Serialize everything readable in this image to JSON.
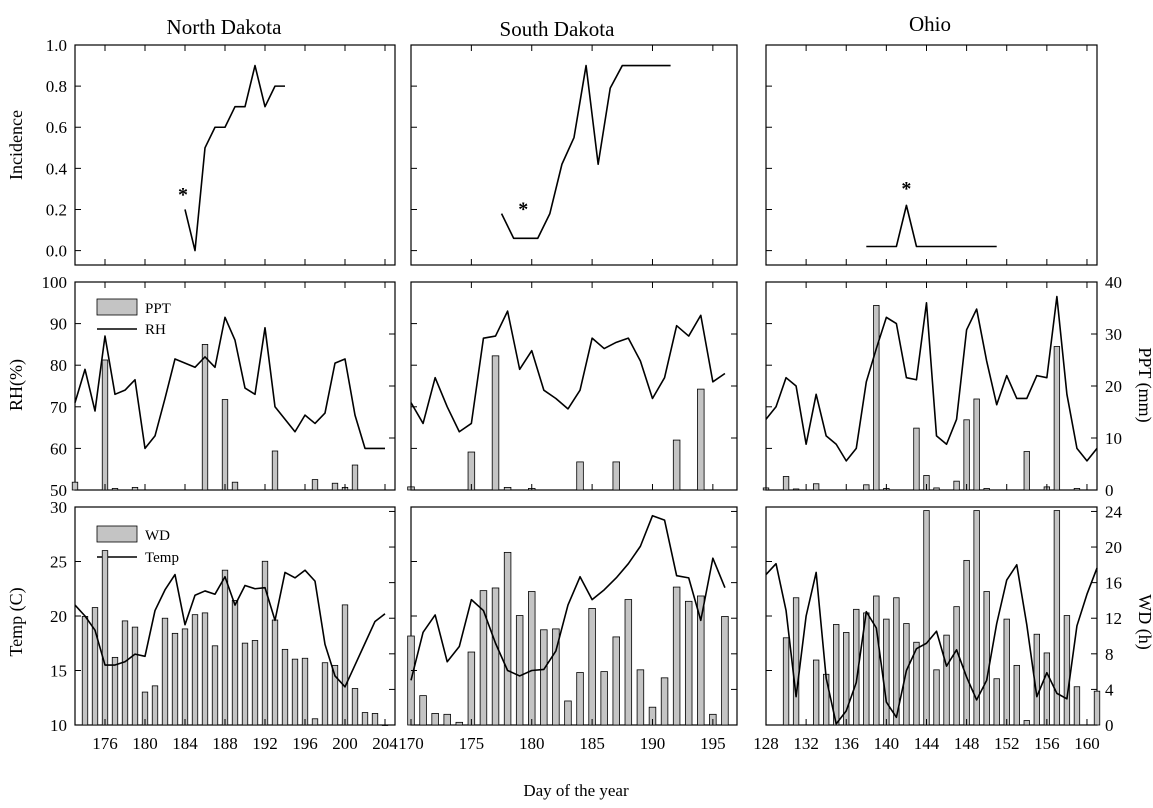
{
  "figure": {
    "xlabel": "Day of the year",
    "left_labels": {
      "incidence": "Incidence",
      "rh": "RH(%)",
      "temp": "Temp (C)"
    },
    "right_labels": {
      "ppt": "PPT (mm)",
      "wd": "WD (h)"
    },
    "legend": {
      "ppt": "PPT",
      "rh": "RH",
      "wd": "WD",
      "temp": "Temp"
    },
    "colors": {
      "bar_fill": "#c4c4c4",
      "line": "#000000"
    }
  },
  "chart_data": [
    {
      "state": "North Dakota",
      "xlim": [
        173,
        205
      ],
      "xticks": [
        176,
        180,
        184,
        188,
        192,
        196,
        200,
        204
      ],
      "incidence": {
        "type": "line",
        "ylabel": "Incidence",
        "ylim": [
          -0.07,
          1.0
        ],
        "yticks": [
          "0.0",
          "0.2",
          "0.4",
          "0.6",
          "0.8",
          "1.0"
        ],
        "x": [
          184,
          185,
          186,
          187,
          188,
          189,
          190,
          191,
          192,
          193,
          194
        ],
        "y": [
          0.2,
          0.0,
          0.5,
          0.6,
          0.6,
          0.7,
          0.7,
          0.9,
          0.7,
          0.8,
          0.8
        ],
        "marker": {
          "x": 183.8,
          "y": 0.29,
          "text": "*"
        }
      },
      "rh_ppt": {
        "type": "bar+line",
        "ylabel": "RH(%)",
        "y2label": "PPT (mm)",
        "ylim": [
          50,
          100
        ],
        "y2lim": [
          0,
          40
        ],
        "yticks": [
          50,
          60,
          70,
          80,
          90,
          100
        ],
        "ppt": {
          "x": [
            173,
            176,
            177,
            179,
            186,
            188,
            189,
            193,
            197,
            199,
            200,
            201
          ],
          "y": [
            1.5,
            25,
            0.3,
            0.5,
            28,
            17.4,
            1.5,
            7.5,
            2,
            1.3,
            0.5,
            4.8
          ]
        },
        "rh": {
          "x": [
            173,
            174,
            175,
            176,
            177,
            178,
            179,
            180,
            181,
            182,
            183,
            184,
            185,
            186,
            187,
            188,
            189,
            190,
            191,
            192,
            193,
            194,
            195,
            196,
            197,
            198,
            199,
            200,
            201,
            202,
            203,
            204
          ],
          "y": [
            71,
            79,
            69,
            87,
            73,
            74,
            76.5,
            60,
            63,
            72,
            81.5,
            80.5,
            79.5,
            82,
            79.5,
            91.5,
            86,
            74.5,
            73,
            89,
            70,
            67,
            64,
            68,
            66,
            68.5,
            80.5,
            81.5,
            68,
            60,
            60,
            60
          ]
        }
      },
      "temp_wd": {
        "type": "bar+line",
        "ylabel": "Temp (C)",
        "y2label": "WD (h)",
        "ylim": [
          10,
          30
        ],
        "y2lim": [
          0,
          24.5
        ],
        "yticks": [
          10,
          15,
          20,
          25,
          30
        ],
        "wd": {
          "x": [
            174,
            175,
            176,
            177,
            178,
            179,
            180,
            181,
            182,
            183,
            184,
            185,
            186,
            187,
            188,
            189,
            190,
            191,
            192,
            193,
            194,
            195,
            196,
            197,
            198,
            199,
            200,
            201,
            202,
            203,
            204
          ],
          "y": [
            12.2,
            13.2,
            19.6,
            7.6,
            11.7,
            11.0,
            3.7,
            4.4,
            12.0,
            10.3,
            10.8,
            12.4,
            12.6,
            8.9,
            17.4,
            14.0,
            9.2,
            9.5,
            18.4,
            11.8,
            8.5,
            7.4,
            7.5,
            0.7,
            7.0,
            6.7,
            13.5,
            4.1,
            1.4,
            1.3,
            0
          ]
        },
        "temp": {
          "x": [
            173,
            174,
            175,
            176,
            177,
            178,
            179,
            180,
            181,
            182,
            183,
            184,
            185,
            186,
            187,
            188,
            189,
            190,
            191,
            192,
            193,
            194,
            195,
            196,
            197,
            198,
            199,
            200,
            201,
            202,
            203,
            204
          ],
          "y": [
            21,
            20,
            18.7,
            15.5,
            15.5,
            15.8,
            16.5,
            16.3,
            20.5,
            22.4,
            23.8,
            19.2,
            21.9,
            22.3,
            22,
            23.6,
            21,
            22.8,
            22.5,
            22.6,
            19.6,
            24,
            23.5,
            24.2,
            23.2,
            17.4,
            14.5,
            13.5,
            15.5,
            17.5,
            19.5,
            20.2
          ]
        }
      }
    },
    {
      "state": "South Dakota",
      "xlim": [
        170,
        197
      ],
      "xticks": [
        170,
        175,
        180,
        185,
        190,
        195
      ],
      "incidence": {
        "type": "line",
        "ylim": [
          -0.07,
          1.0
        ],
        "x": [
          177.5,
          178.5,
          179.5,
          180.5,
          181.5,
          182.5,
          183.5,
          184.5,
          185.5,
          186.5,
          187.5,
          188.5,
          189.5,
          190.5,
          191.5
        ],
        "y": [
          0.18,
          0.06,
          0.06,
          0.06,
          0.18,
          0.42,
          0.55,
          0.9,
          0.42,
          0.79,
          0.9,
          0.9,
          0.9,
          0.9,
          0.9
        ],
        "marker": {
          "x": 179.3,
          "y": 0.22,
          "text": "*"
        }
      },
      "rh_ppt": {
        "type": "bar+line",
        "ylim": [
          50,
          100
        ],
        "y2lim": [
          0,
          40
        ],
        "ppt": {
          "x": [
            170,
            175,
            177,
            178,
            180,
            184,
            187,
            192,
            194
          ],
          "y": [
            0.6,
            7.3,
            25.8,
            0.5,
            0.3,
            5.4,
            5.4,
            9.6,
            19.4
          ]
        },
        "rh": {
          "x": [
            170,
            171,
            172,
            173,
            174,
            175,
            176,
            177,
            178,
            179,
            180,
            181,
            182,
            183,
            184,
            185,
            186,
            187,
            188,
            189,
            190,
            191,
            192,
            193,
            194,
            195,
            196
          ],
          "y": [
            71,
            66,
            77,
            70,
            64,
            66,
            86.5,
            87,
            93,
            79,
            83.5,
            74,
            72,
            69.5,
            74,
            86.5,
            84,
            85.5,
            86.5,
            81,
            72,
            77,
            89.5,
            87,
            92,
            76,
            78
          ]
        }
      },
      "temp_wd": {
        "type": "bar+line",
        "ylim": [
          10,
          30
        ],
        "y2lim": [
          0,
          24.5
        ],
        "wd": {
          "x": [
            170,
            171,
            172,
            173,
            174,
            175,
            176,
            177,
            178,
            179,
            180,
            181,
            182,
            183,
            184,
            185,
            186,
            187,
            188,
            189,
            190,
            191,
            192,
            193,
            194,
            195,
            196
          ],
          "y": [
            10,
            3.3,
            1.3,
            1.2,
            0.3,
            8.2,
            15.1,
            15.4,
            19.4,
            12.3,
            15.0,
            10.7,
            10.8,
            2.7,
            5.9,
            13.1,
            6.0,
            9.9,
            14.1,
            6.2,
            2.0,
            5.3,
            15.5,
            13.9,
            14.5,
            1.2,
            12.2
          ]
        },
        "temp": {
          "x": [
            170,
            171,
            172,
            173,
            174,
            175,
            176,
            177,
            178,
            179,
            180,
            181,
            182,
            183,
            184,
            185,
            186,
            187,
            188,
            189,
            190,
            191,
            192,
            193,
            194,
            195,
            196
          ],
          "y": [
            14.1,
            18.5,
            20.1,
            15.8,
            17.2,
            21.5,
            20.5,
            17.5,
            15,
            14.5,
            15,
            15.1,
            16.8,
            21,
            23.6,
            21.5,
            22.4,
            23.5,
            24.8,
            26.4,
            29.2,
            28.8,
            23.7,
            23.5,
            19.6,
            25.3,
            22.6
          ]
        }
      }
    },
    {
      "state": "Ohio",
      "xlim": [
        128,
        161
      ],
      "xticks": [
        128,
        132,
        136,
        140,
        144,
        148,
        152,
        156,
        160
      ],
      "incidence": {
        "type": "line",
        "ylim": [
          -0.07,
          1.0
        ],
        "x": [
          138,
          139,
          140,
          141,
          142,
          143,
          144,
          145,
          146,
          147,
          148,
          149,
          150,
          151
        ],
        "y": [
          0.02,
          0.02,
          0.02,
          0.02,
          0.22,
          0.02,
          0.02,
          0.02,
          0.02,
          0.02,
          0.02,
          0.02,
          0.02,
          0.02
        ],
        "marker": {
          "x": 142,
          "y": 0.32,
          "text": "*"
        }
      },
      "rh_ppt": {
        "type": "bar+line",
        "ylim": [
          50,
          100
        ],
        "y2lim": [
          0,
          40
        ],
        "yright_ticks": [
          0,
          10,
          20,
          30,
          40
        ],
        "ppt": {
          "x": [
            128,
            130,
            131,
            133,
            138,
            139,
            140,
            143,
            144,
            145,
            147,
            148,
            149,
            150,
            154,
            156,
            157,
            159
          ],
          "y": [
            0.4,
            2.6,
            0.2,
            1.2,
            1.0,
            35.5,
            0.3,
            11.9,
            2.8,
            0.4,
            1.7,
            13.5,
            17.5,
            0.3,
            7.4,
            0.6,
            27.6,
            0.3
          ]
        },
        "rh": {
          "x": [
            128,
            129,
            130,
            131,
            132,
            133,
            134,
            135,
            136,
            137,
            138,
            139,
            140,
            141,
            142,
            143,
            144,
            145,
            146,
            147,
            148,
            149,
            150,
            151,
            152,
            153,
            154,
            155,
            156,
            157,
            158,
            159,
            160,
            161
          ],
          "y": [
            67,
            70,
            77,
            75,
            61,
            73,
            63,
            61,
            57,
            60,
            76,
            84,
            91.5,
            90,
            77,
            76.5,
            95,
            63,
            61,
            67,
            88.5,
            93.5,
            81,
            70.5,
            77.5,
            72,
            72,
            77.5,
            77,
            96.5,
            73,
            60,
            57,
            60
          ]
        }
      },
      "temp_wd": {
        "type": "bar+line",
        "ylim": [
          10,
          30
        ],
        "y2lim": [
          0,
          24.5
        ],
        "yright_ticks": [
          0,
          4,
          8,
          12,
          16,
          20,
          24
        ],
        "wd": {
          "x": [
            130,
            131,
            133,
            134,
            135,
            136,
            137,
            138,
            139,
            140,
            141,
            142,
            143,
            144,
            145,
            146,
            147,
            148,
            149,
            150,
            151,
            152,
            153,
            154,
            155,
            156,
            157,
            158,
            159,
            161
          ],
          "y": [
            9.8,
            14.3,
            7.3,
            5.7,
            11.3,
            10.4,
            13.0,
            12.6,
            14.5,
            11.9,
            14.3,
            11.4,
            9.3,
            24.1,
            6.2,
            10.1,
            13.3,
            18.5,
            24.1,
            15.0,
            5.2,
            11.9,
            6.7,
            0.5,
            10.2,
            8.1,
            24.1,
            12.3,
            4.3,
            3.8
          ]
        },
        "temp": {
          "x": [
            128,
            129,
            130,
            131,
            132,
            133,
            134,
            135,
            136,
            137,
            138,
            139,
            140,
            141,
            142,
            143,
            144,
            145,
            146,
            147,
            148,
            149,
            150,
            151,
            152,
            153,
            154,
            155,
            156,
            157,
            158,
            159,
            160,
            161
          ],
          "y": [
            23.8,
            24.8,
            20.5,
            12.6,
            20,
            24,
            14.3,
            10.1,
            11.3,
            13.9,
            20.4,
            18.9,
            12.1,
            10.7,
            15,
            17,
            17.5,
            18.6,
            15.4,
            16.9,
            14.4,
            12.3,
            14.1,
            19.3,
            23.3,
            24.7,
            19.2,
            12.6,
            14.8,
            12.9,
            12.4,
            19.1,
            22,
            24.4
          ]
        }
      }
    }
  ]
}
